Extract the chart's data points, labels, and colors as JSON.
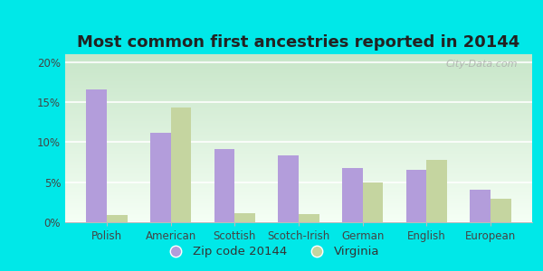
{
  "title": "Most common first ancestries reported in 20144",
  "categories": [
    "Polish",
    "American",
    "Scottish",
    "Scotch-Irish",
    "German",
    "English",
    "European"
  ],
  "zip_values": [
    16.6,
    11.2,
    9.1,
    8.3,
    6.8,
    6.6,
    4.1
  ],
  "va_values": [
    0.9,
    14.3,
    1.1,
    1.0,
    5.0,
    7.8,
    2.9
  ],
  "zip_color": "#b39ddb",
  "va_color": "#c5d5a0",
  "background_outer": "#00e8e8",
  "background_inner_top": "#e8f5e9",
  "background_inner_bottom": "#d4edda",
  "title_fontsize": 13,
  "tick_fontsize": 8.5,
  "legend_fontsize": 9.5,
  "ylim": [
    0,
    21
  ],
  "yticks": [
    0,
    5,
    10,
    15,
    20
  ],
  "ytick_labels": [
    "0%",
    "5%",
    "10%",
    "15%",
    "20%"
  ],
  "legend_zip_label": "Zip code 20144",
  "legend_va_label": "Virginia",
  "watermark": "City-Data.com"
}
